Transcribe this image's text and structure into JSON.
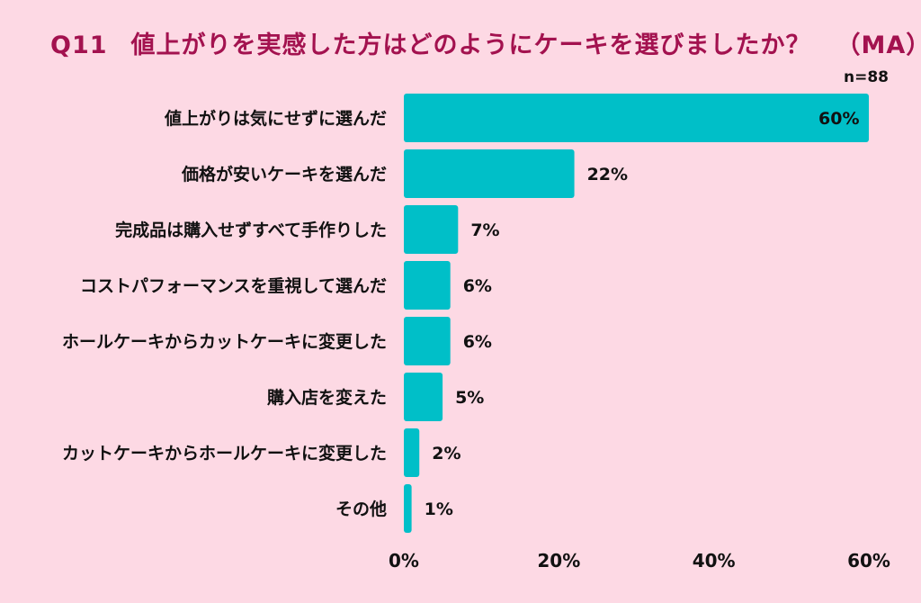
{
  "title": {
    "code": "Q11",
    "text": "値上がりを実感した方はどのようにケーキを選びましたか？",
    "tag": "（MA）"
  },
  "sample": "n=88",
  "chart_data": {
    "type": "bar",
    "orientation": "horizontal",
    "categories": [
      "値上がりは気にせずに選んだ",
      "価格が安いケーキを選んだ",
      "完成品は購入せずすべて手作りした",
      "コストパフォーマンスを重視して選んだ",
      "ホールケーキからカットケーキに変更した",
      "購入店を変えた",
      "カットケーキからホールケーキに変更した",
      "その他"
    ],
    "values": [
      60,
      22,
      7,
      6,
      6,
      5,
      2,
      1
    ],
    "value_labels": [
      "60%",
      "22%",
      "7%",
      "6%",
      "6%",
      "5%",
      "2%",
      "1%"
    ],
    "xlim": [
      0,
      60
    ],
    "xticks": [
      "0%",
      "20%",
      "40%",
      "60%"
    ],
    "grid": false,
    "legend": "none",
    "bar_color": "#00bfc8"
  }
}
